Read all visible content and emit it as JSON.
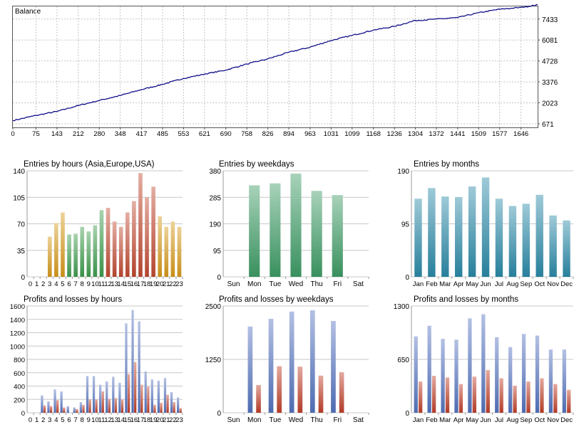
{
  "colors": {
    "balance_line": "#10108a",
    "grid": "#c8c8c8",
    "grid_dotted": "#c4c4c4",
    "hours_asia": "#d89a1a",
    "hours_europe": "#3f9e4e",
    "hours_usa": "#c24a32",
    "weekdays": "#3e9c66",
    "months": "#2a8aa8",
    "profit": "#5574c0",
    "loss": "#c0402a"
  },
  "chart_data": [
    {
      "id": "balance",
      "type": "line",
      "title": "Balance",
      "x_ticks": [
        "0",
        "75",
        "143",
        "212",
        "280",
        "348",
        "417",
        "485",
        "553",
        "621",
        "690",
        "758",
        "826",
        "894",
        "963",
        "1031",
        "1099",
        "1168",
        "1236",
        "1304",
        "1372",
        "1441",
        "1509",
        "1577",
        "1646"
      ],
      "xlim": [
        0,
        1700
      ],
      "y_ticks": [
        "671",
        "2023",
        "3376",
        "4728",
        "6081",
        "7433"
      ],
      "ylim": [
        440,
        8250
      ],
      "series": [
        {
          "x": [
            0,
            75,
            143,
            212,
            280,
            348,
            417,
            485,
            553,
            621,
            690,
            758,
            826,
            894,
            963,
            1031,
            1099,
            1168,
            1236,
            1304,
            1372,
            1441,
            1509,
            1577,
            1646,
            1700
          ],
          "y": [
            880,
            1210,
            1470,
            1850,
            2180,
            2500,
            2880,
            3220,
            3600,
            3880,
            4140,
            4530,
            4860,
            5290,
            5620,
            6050,
            6380,
            6720,
            6960,
            7340,
            7430,
            7530,
            7840,
            8070,
            8180,
            8350
          ]
        }
      ]
    },
    {
      "id": "entries_hours",
      "type": "bar",
      "title": "Entries by hours (Asia,Europe,USA)",
      "categories": [
        "0",
        "1",
        "2",
        "3",
        "4",
        "5",
        "6",
        "7",
        "8",
        "9",
        "10",
        "11",
        "12",
        "13",
        "14",
        "15",
        "16",
        "17",
        "18",
        "19",
        "20",
        "21",
        "22",
        "23"
      ],
      "values": [
        0,
        0,
        0,
        53,
        71,
        85,
        56,
        57,
        66,
        60,
        68,
        88,
        91,
        73,
        66,
        85,
        100,
        137,
        105,
        119,
        80,
        66,
        73,
        66
      ],
      "ylim": [
        0,
        140
      ],
      "y_ticks": [
        "0",
        "35",
        "70",
        "105",
        "140"
      ]
    },
    {
      "id": "entries_weekdays",
      "type": "bar",
      "title": "Entries by weekdays",
      "categories": [
        "Sun",
        "Mon",
        "Tue",
        "Wed",
        "Thu",
        "Fri",
        "Sat"
      ],
      "values": [
        0,
        328,
        335,
        370,
        308,
        293,
        0
      ],
      "ylim": [
        0,
        380
      ],
      "y_ticks": [
        "0",
        "95",
        "190",
        "285",
        "380"
      ]
    },
    {
      "id": "entries_months",
      "type": "bar",
      "title": "Entries by months",
      "categories": [
        "Jan",
        "Feb",
        "Mar",
        "Apr",
        "May",
        "Jun",
        "Jul",
        "Aug",
        "Sep",
        "Oct",
        "Nov",
        "Dec"
      ],
      "values": [
        140,
        159,
        144,
        143,
        162,
        178,
        140,
        127,
        131,
        147,
        110,
        101
      ],
      "ylim": [
        0,
        190
      ],
      "y_ticks": [
        "0",
        "95",
        "190"
      ]
    },
    {
      "id": "pl_hours",
      "type": "bar",
      "title": "Profits and losses by hours",
      "categories": [
        "0",
        "1",
        "2",
        "3",
        "4",
        "5",
        "6",
        "7",
        "8",
        "9",
        "10",
        "11",
        "12",
        "13",
        "14",
        "15",
        "16",
        "17",
        "18",
        "19",
        "20",
        "21",
        "22",
        "23"
      ],
      "series": [
        {
          "values": [
            0,
            0,
            260,
            170,
            350,
            320,
            100,
            80,
            160,
            550,
            550,
            420,
            470,
            540,
            450,
            1340,
            1540,
            1370,
            620,
            500,
            480,
            520,
            310,
            230
          ]
        },
        {
          "values": [
            0,
            0,
            110,
            100,
            190,
            80,
            0,
            55,
            120,
            200,
            200,
            320,
            210,
            220,
            200,
            580,
            760,
            420,
            390,
            120,
            150,
            270,
            160,
            70
          ]
        }
      ],
      "ylim": [
        0,
        1600
      ],
      "y_ticks": [
        "0",
        "200",
        "400",
        "600",
        "800",
        "1000",
        "1200",
        "1400",
        "1600"
      ]
    },
    {
      "id": "pl_weekdays",
      "type": "bar",
      "title": "Profits and losses by weekdays",
      "categories": [
        "Sun",
        "Mon",
        "Tue",
        "Wed",
        "Thu",
        "Fri",
        "Sat"
      ],
      "series": [
        {
          "values": [
            0,
            2020,
            2200,
            2370,
            2400,
            2150,
            0
          ]
        },
        {
          "values": [
            0,
            650,
            1090,
            1080,
            870,
            950,
            0
          ]
        }
      ],
      "ylim": [
        0,
        2500
      ],
      "y_ticks": [
        "0",
        "1250",
        "2500"
      ]
    },
    {
      "id": "pl_months",
      "type": "bar",
      "title": "Profits and losses by months",
      "categories": [
        "Jan",
        "Feb",
        "Mar",
        "Apr",
        "May",
        "Jun",
        "Jul",
        "Aug",
        "Sep",
        "Oct",
        "Nov",
        "Dec"
      ],
      "series": [
        {
          "values": [
            930,
            1060,
            900,
            890,
            1150,
            1200,
            920,
            800,
            960,
            940,
            770,
            770
          ]
        },
        {
          "values": [
            380,
            450,
            430,
            350,
            440,
            520,
            420,
            330,
            380,
            420,
            350,
            280
          ]
        }
      ],
      "ylim": [
        0,
        1300
      ],
      "y_ticks": [
        "0",
        "650",
        "1300"
      ]
    }
  ]
}
